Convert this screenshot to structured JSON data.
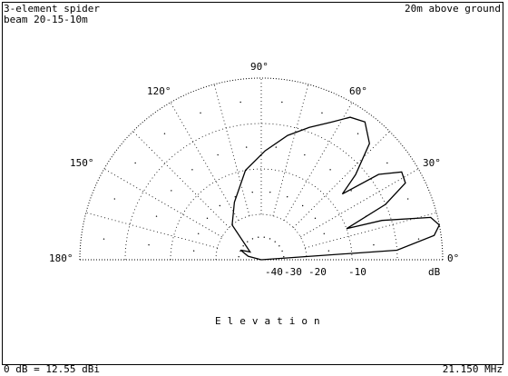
{
  "title": {
    "line1": "3-element spider",
    "line2": "beam 20-15-10m"
  },
  "height_note": "20m above ground",
  "footer": {
    "reference": "0 dB = 12.55 dBi",
    "frequency": "21.150 MHz"
  },
  "plot_label": "Elevation",
  "angle_labels": {
    "a0": "0°",
    "a30": "30°",
    "a60": "60°",
    "a90": "90°",
    "a120": "120°",
    "a150": "150°",
    "a180": "180°"
  },
  "db_labels": {
    "m40": "-40",
    "m30": "-30",
    "m20": "-20",
    "m10": "-10",
    "db": "dB"
  },
  "chart_data": {
    "type": "polar",
    "radial_unit": "dB",
    "radial_ticks": [
      -40,
      -30,
      -20,
      -10,
      0
    ],
    "angle_range_deg": [
      0,
      180
    ],
    "angle_ticks_deg": [
      0,
      30,
      60,
      90,
      120,
      150,
      180
    ],
    "series": [
      {
        "points": [
          {
            "angle": 0,
            "db": -40
          },
          {
            "angle": 4,
            "db": -10
          },
          {
            "angle": 8,
            "db": -1.5
          },
          {
            "angle": 11,
            "db": 0
          },
          {
            "angle": 14,
            "db": -1.5
          },
          {
            "angle": 18,
            "db": -12
          },
          {
            "angle": 20,
            "db": -20
          },
          {
            "angle": 24,
            "db": -10
          },
          {
            "angle": 28,
            "db": -4
          },
          {
            "angle": 32,
            "db": -3.5
          },
          {
            "angle": 36,
            "db": -8
          },
          {
            "angle": 39,
            "db": -17
          },
          {
            "angle": 42,
            "db": -12
          },
          {
            "angle": 47,
            "db": -5
          },
          {
            "angle": 53,
            "db": -2
          },
          {
            "angle": 58,
            "db": -3
          },
          {
            "angle": 63,
            "db": -6
          },
          {
            "angle": 70,
            "db": -9
          },
          {
            "angle": 78,
            "db": -12
          },
          {
            "angle": 88,
            "db": -16
          },
          {
            "angle": 100,
            "db": -20
          },
          {
            "angle": 115,
            "db": -26
          },
          {
            "angle": 130,
            "db": -30
          },
          {
            "angle": 145,
            "db": -37
          },
          {
            "angle": 155,
            "db": -35
          },
          {
            "angle": 165,
            "db": -37
          },
          {
            "angle": 175,
            "db": -40
          },
          {
            "angle": 180,
            "db": -40
          }
        ]
      }
    ]
  }
}
